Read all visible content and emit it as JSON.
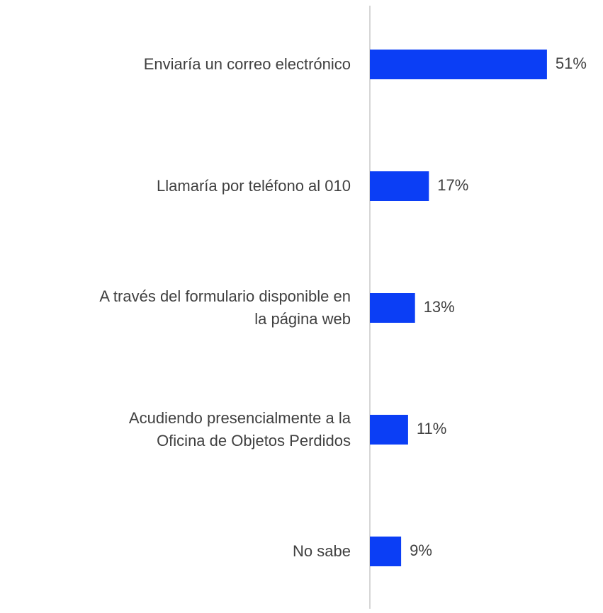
{
  "chart_data": {
    "type": "bar",
    "orientation": "horizontal",
    "categories": [
      "Enviaría un correo electrónico",
      "Llamaría por teléfono al 010",
      "A través del formulario disponible en\nla página web",
      "Acudiendo presencialmente a la\nOficina de Objetos Perdidos",
      "No sabe"
    ],
    "values": [
      51,
      17,
      13,
      11,
      9
    ],
    "value_labels": [
      "51%",
      "17%",
      "13%",
      "11%",
      "9%"
    ],
    "color": "#0b3ef5",
    "xlim": [
      0,
      60
    ]
  }
}
